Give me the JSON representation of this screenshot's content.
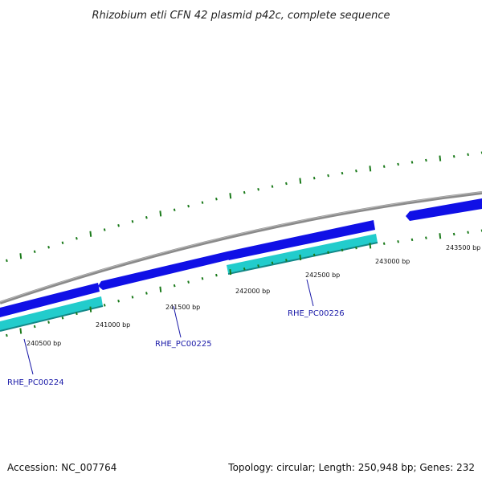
{
  "title": "Rhizobium etli CFN 42 plasmid p42c, complete sequence",
  "footer": {
    "accession": "Accession: NC_007764",
    "summary": "Topology: circular; Length: 250,948 bp; Genes: 232"
  },
  "bp_labels": [
    "240500 bp",
    "241000 bp",
    "241500 bp",
    "242000 bp",
    "242500 bp",
    "243000 bp",
    "243500 bp"
  ],
  "genes": [
    {
      "locus": "RHE_PC00224",
      "strand": "minus"
    },
    {
      "locus": "RHE_PC00225",
      "strand": "plus"
    },
    {
      "locus": "RHE_PC00226",
      "strand": "minus"
    },
    {
      "locus": "",
      "strand": "plus"
    }
  ],
  "colors": {
    "backbone": "#8a8a8a",
    "forward_gene": "#1010e6",
    "reverse_gene": "#22cccc",
    "tick": "#1a7a1a",
    "label": "#1a1aa8"
  }
}
